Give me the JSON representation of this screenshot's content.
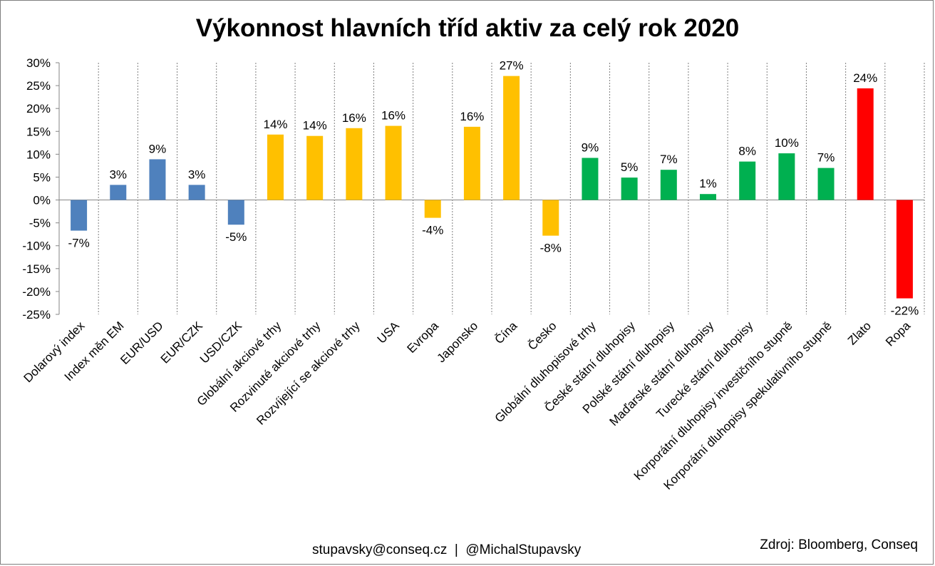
{
  "title": "Výkonnost hlavních tříd aktiv za celý rok 2020",
  "footer": {
    "contact": "stupavsky@conseq.cz  |  @MichalStupavsky",
    "source": "Zdroj: Bloomberg, Conseq"
  },
  "colors": {
    "blue": "#4f81bd",
    "yellow": "#ffc000",
    "green": "#00b050",
    "red": "#ff0000"
  },
  "chart_data": {
    "type": "bar",
    "title": "Výkonnost hlavních tříd aktiv za celý rok 2020",
    "xlabel": "",
    "ylabel": "",
    "ylim": [
      -0.25,
      0.3
    ],
    "ytick_step": 0.05,
    "grid": "vertical dashed separators between categories",
    "legend": "none",
    "categories": [
      "Dolarový index",
      "Index měn EM",
      "EUR/USD",
      "EUR/CZK",
      "USD/CZK",
      "Globální akciové trhy",
      "Rozvinuté akciové trhy",
      "Rozvíjející se akciové trhy",
      "USA",
      "Evropa",
      "Japonsko",
      "Čína",
      "Česko",
      "Globální dluhopisové trhy",
      "České státní dluhopisy",
      "Polské státní dluhopisy",
      "Maďarské státní dluhopisy",
      "Turecké státní dluhopisy",
      "Korporátní dluhopisy investičního stupně",
      "Korporátní dluhopisy spekulativního stupně",
      "Zlato",
      "Ropa"
    ],
    "values": [
      -0.067,
      0.033,
      0.089,
      0.033,
      -0.054,
      0.143,
      0.14,
      0.157,
      0.162,
      -0.039,
      0.16,
      0.271,
      -0.078,
      0.092,
      0.049,
      0.066,
      0.013,
      0.084,
      0.102,
      0.07,
      0.244,
      -0.215
    ],
    "labels": [
      "-7%",
      "3%",
      "9%",
      "3%",
      "-5%",
      "14%",
      "14%",
      "16%",
      "16%",
      "-4%",
      "16%",
      "27%",
      "-8%",
      "9%",
      "5%",
      "7%",
      "1%",
      "8%",
      "10%",
      "7%",
      "24%",
      "-22%"
    ],
    "bar_colors": [
      "blue",
      "blue",
      "blue",
      "blue",
      "blue",
      "yellow",
      "yellow",
      "yellow",
      "yellow",
      "yellow",
      "yellow",
      "yellow",
      "yellow",
      "green",
      "green",
      "green",
      "green",
      "green",
      "green",
      "green",
      "red",
      "red"
    ]
  }
}
